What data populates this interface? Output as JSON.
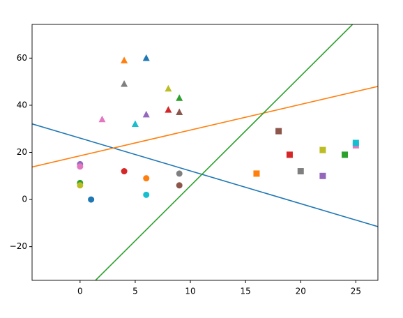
{
  "chart_data": {
    "type": "scatter",
    "xlim": [
      -4.35,
      27.0
    ],
    "ylim": [
      -34.3,
      74.3
    ],
    "xticks": [
      0,
      5,
      10,
      15,
      20,
      25
    ],
    "yticks": [
      {
        "value": -20,
        "label": "−20"
      },
      0,
      20,
      40,
      60
    ],
    "series": [
      {
        "marker": "circle",
        "x": [
          1,
          6,
          0,
          4,
          0,
          9,
          0,
          9,
          0,
          6
        ],
        "values": [
          0,
          9,
          7,
          12,
          15,
          6,
          14,
          11,
          6,
          2
        ],
        "colors": [
          "#1f77b4",
          "#ff7f0e",
          "#2ca02c",
          "#d62728",
          "#9467bd",
          "#8c564b",
          "#e377c2",
          "#7f7f7f",
          "#bcbd22",
          "#17becf"
        ]
      },
      {
        "marker": "triangle",
        "x": [
          6,
          4,
          9,
          8,
          6,
          9,
          2,
          4,
          8,
          5
        ],
        "values": [
          60,
          59,
          43,
          38,
          36,
          37,
          34,
          49,
          47,
          32
        ],
        "colors": [
          "#1f77b4",
          "#ff7f0e",
          "#2ca02c",
          "#d62728",
          "#9467bd",
          "#8c564b",
          "#e377c2",
          "#7f7f7f",
          "#bcbd22",
          "#17becf"
        ]
      },
      {
        "marker": "square",
        "x": [
          16,
          24,
          19,
          22,
          18,
          25,
          20,
          22,
          25
        ],
        "values": [
          11,
          19,
          19,
          10,
          29,
          23,
          12,
          21,
          24
        ],
        "colors": [
          "#ff7f0e",
          "#2ca02c",
          "#d62728",
          "#9467bd",
          "#8c564b",
          "#e377c2",
          "#7f7f7f",
          "#bcbd22",
          "#17becf"
        ]
      }
    ],
    "lines": [
      {
        "color": "#1f77b4",
        "x": [
          -4.35,
          27.0
        ],
        "values": [
          32.1,
          -11.5
        ]
      },
      {
        "color": "#ff7f0e",
        "x": [
          -4.35,
          27.0
        ],
        "values": [
          13.8,
          48.0
        ]
      },
      {
        "color": "#2ca02c",
        "x": [
          1.4,
          24.7
        ],
        "values": [
          -34.3,
          74.3
        ]
      }
    ]
  }
}
